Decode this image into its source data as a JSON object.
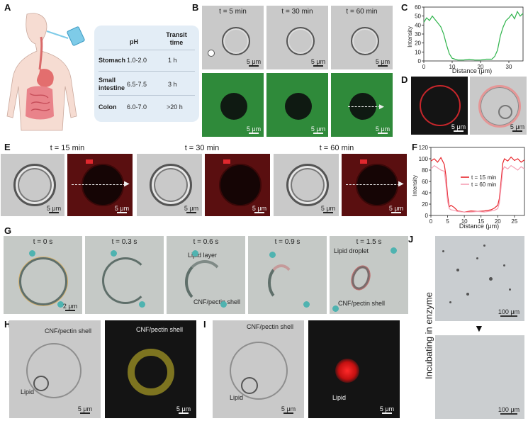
{
  "panel_labels": {
    "A": "A",
    "B": "B",
    "C": "C",
    "D": "D",
    "E": "E",
    "F": "F",
    "G": "G",
    "H": "H",
    "I": "I",
    "J": "J"
  },
  "panel_a": {
    "header_ph": "pH",
    "header_transit": "Transit time",
    "rows": [
      {
        "organ": "Stomach",
        "ph": "1.0-2.0",
        "time": "1 h"
      },
      {
        "organ": "Small intestine",
        "ph": "6.5-7.5",
        "time": "3 h"
      },
      {
        "organ": "Colon",
        "ph": "6.0-7.0",
        "time": ">20 h"
      }
    ]
  },
  "panel_b": {
    "times": [
      "t = 5 min",
      "t = 30 min",
      "t = 60 min"
    ],
    "scale": "5 μm"
  },
  "panel_c": {
    "ylabel": "Intensity",
    "xlabel": "Distance (μm)"
  },
  "panel_d": {
    "scale": "5 μm"
  },
  "panel_e": {
    "times": [
      "t = 15 min",
      "t = 30 min",
      "t = 60 min"
    ],
    "scale": "5 μm"
  },
  "panel_f": {
    "ylabel": "Intensity",
    "xlabel": "Distance (μm)"
  },
  "panel_g": {
    "times": [
      "t = 0 s",
      "t = 0.3 s",
      "t = 0.6 s",
      "t = 0.9 s",
      "t = 1.5 s"
    ],
    "scale": "2 μm",
    "ann_lipid_layer": "Lipid layer",
    "ann_shell": "CNF/pectin shell",
    "ann_lipid_droplet": "Lipid droplet"
  },
  "panel_h": {
    "shell": "CNF/pectin shell",
    "lipid": "Lipid",
    "scale": "5 μm"
  },
  "panel_i": {
    "shell": "CNF/pectin shell",
    "lipid": "Lipid",
    "scale": "5 μm"
  },
  "panel_j": {
    "side_label": "Incubating in enzyme",
    "scale": "100 μm"
  },
  "chart_data": [
    {
      "type": "line",
      "title": "",
      "xlabel": "Distance (μm)",
      "ylabel": "Intensity",
      "xlim": [
        0,
        35
      ],
      "ylim": [
        0,
        60
      ],
      "xticks": [
        0,
        10,
        20,
        30
      ],
      "yticks": [
        0,
        10,
        20,
        30,
        40,
        50,
        60
      ],
      "series": [
        {
          "color": "#2db34a",
          "x": [
            0,
            1,
            2,
            3,
            4,
            5,
            6,
            7,
            8,
            9,
            10,
            11,
            12,
            14,
            16,
            18,
            20,
            22,
            24,
            25,
            26,
            27,
            28,
            29,
            30,
            31,
            32,
            33,
            34,
            35
          ],
          "y": [
            43,
            48,
            45,
            50,
            46,
            42,
            38,
            30,
            18,
            8,
            3,
            2,
            1,
            1,
            2,
            1,
            1,
            2,
            2,
            5,
            12,
            28,
            38,
            45,
            48,
            52,
            47,
            55,
            50,
            53
          ]
        }
      ]
    },
    {
      "type": "line",
      "title": "",
      "xlabel": "Distance (μm)",
      "ylabel": "Intensity",
      "xlim": [
        0,
        28
      ],
      "ylim": [
        0,
        120
      ],
      "xticks": [
        0,
        5,
        10,
        15,
        20,
        25
      ],
      "yticks": [
        0,
        20,
        40,
        60,
        80,
        100,
        120
      ],
      "legend_position": "top-right",
      "series": [
        {
          "name": "t = 15 min",
          "color": "#e8252b",
          "x": [
            0,
            1,
            2,
            3,
            4,
            4.5,
            5,
            5.5,
            6,
            7,
            8,
            10,
            12,
            14,
            16,
            18,
            19,
            20,
            20.5,
            21,
            21.5,
            22,
            23,
            24,
            25,
            26,
            27,
            28
          ],
          "y": [
            96,
            100,
            94,
            102,
            90,
            70,
            35,
            15,
            18,
            14,
            8,
            6,
            8,
            7,
            8,
            10,
            13,
            18,
            30,
            60,
            92,
            100,
            96,
            103,
            97,
            100,
            94,
            98
          ]
        },
        {
          "name": "t = 60 min",
          "color": "#f5a0b4",
          "x": [
            0,
            1,
            2,
            3,
            4,
            4.5,
            5,
            5.5,
            6,
            7,
            8,
            10,
            12,
            14,
            16,
            18,
            19,
            20,
            20.5,
            21,
            21.5,
            22,
            23,
            24,
            25,
            26,
            27,
            28
          ],
          "y": [
            82,
            88,
            84,
            80,
            78,
            55,
            25,
            12,
            10,
            9,
            7,
            6,
            6,
            7,
            6,
            8,
            9,
            12,
            22,
            50,
            80,
            86,
            82,
            88,
            84,
            80,
            86,
            82
          ]
        }
      ]
    }
  ]
}
